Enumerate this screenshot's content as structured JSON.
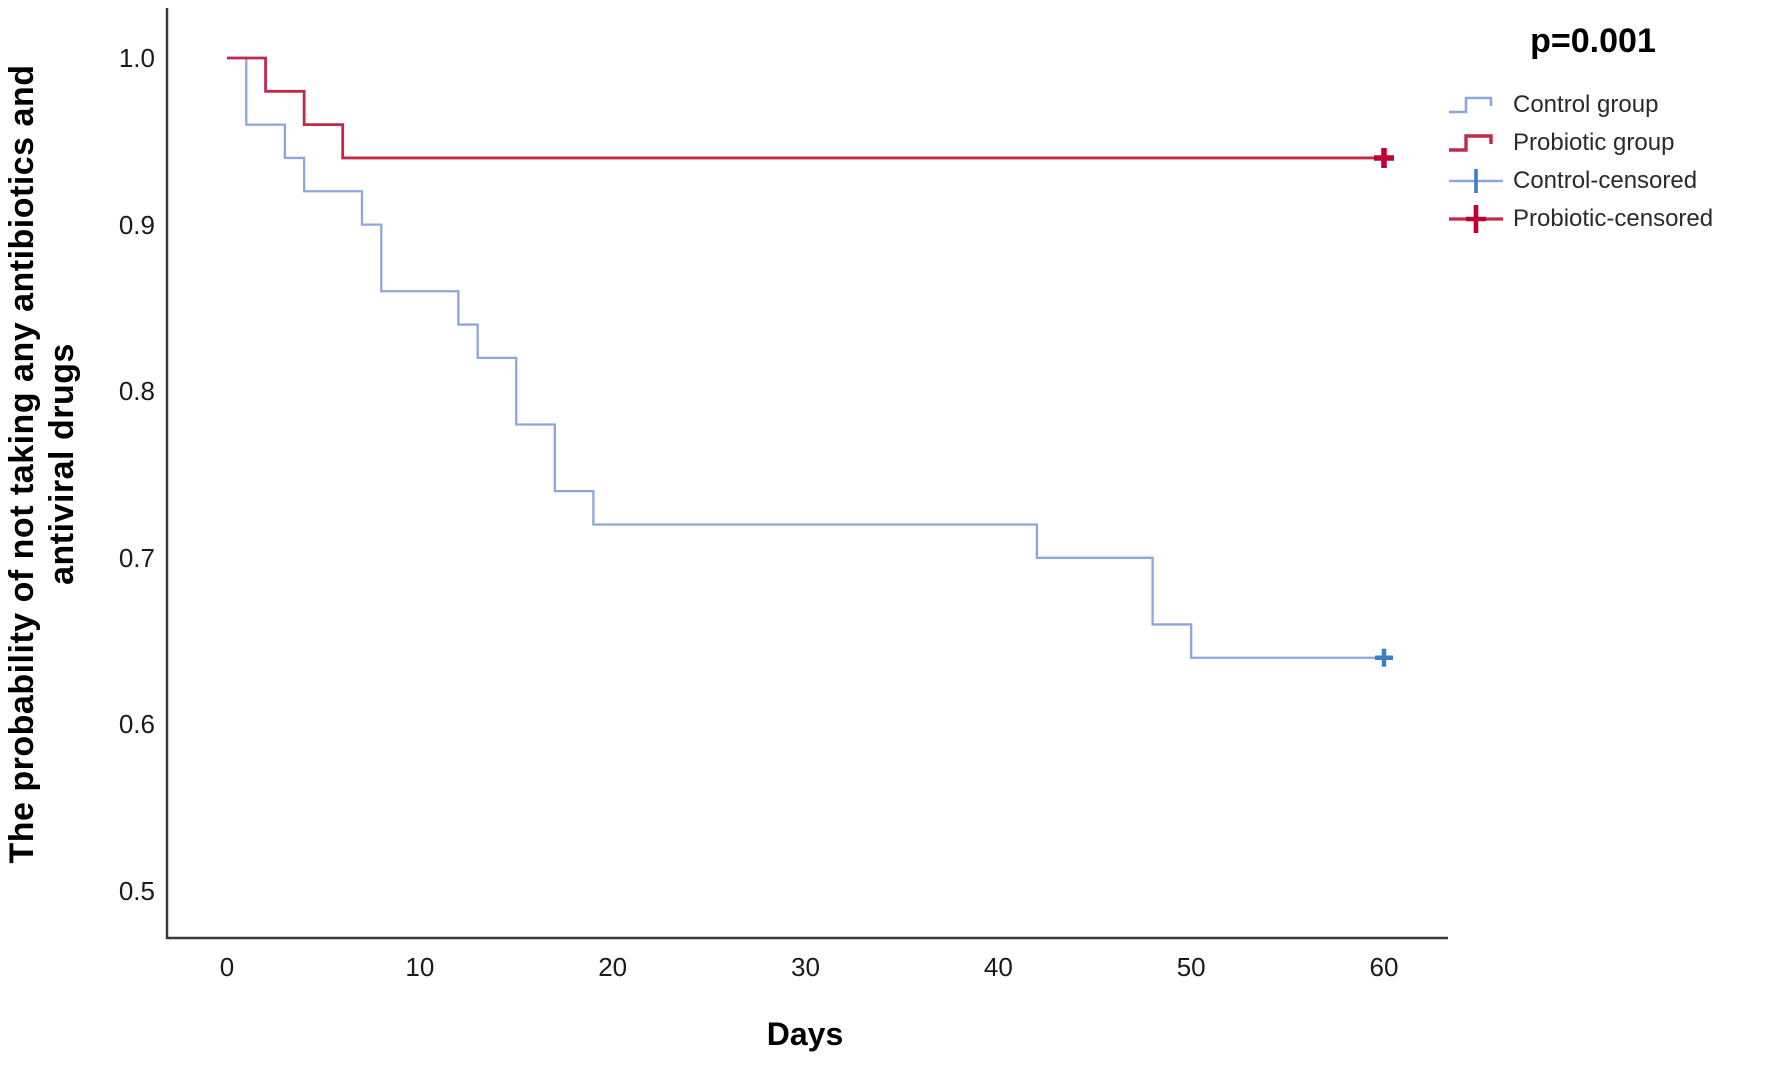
{
  "p_value_label": "p=0.001",
  "axes": {
    "y_title_line1": "The probability of not taking any antibiotics and",
    "y_title_line2": "antiviral drugs",
    "x_title": "Days"
  },
  "colors": {
    "control_line": "#8FA6DC",
    "control_censor": "#3E7CC6",
    "probiotic_line": "#C2284A",
    "probiotic_censor": "#BE0032",
    "axis_line": "#3a3a3a",
    "text": "#1a1a1a"
  },
  "chart_data": {
    "type": "line",
    "subtype": "kaplan-meier-step",
    "title": "",
    "xlabel": "Days",
    "ylabel": "The probability of not taking any antibiotics and antiviral drugs",
    "annotation": "p=0.001",
    "grid": false,
    "legend_position": "upper right",
    "xlim": [
      -3.1,
      63.3
    ],
    "ylim": [
      0.472,
      1.03
    ],
    "xticks": [
      "0",
      "10",
      "20",
      "30",
      "40",
      "50",
      "60"
    ],
    "ytick_values": [
      1.0,
      0.9,
      0.8,
      0.7,
      0.6,
      0.5
    ],
    "ytick_labels": [
      "1.0",
      "0.9",
      "0.8",
      "0.7",
      "0.6",
      "0.5"
    ],
    "series": [
      {
        "name": "Control group",
        "color": "#8FA6DC",
        "step_points": [
          [
            0,
            1.0
          ],
          [
            1,
            0.96
          ],
          [
            3,
            0.94
          ],
          [
            4,
            0.92
          ],
          [
            7,
            0.9
          ],
          [
            8,
            0.86
          ],
          [
            12,
            0.84
          ],
          [
            13,
            0.82
          ],
          [
            15,
            0.78
          ],
          [
            17,
            0.74
          ],
          [
            19,
            0.72
          ],
          [
            42,
            0.7
          ],
          [
            48,
            0.66
          ],
          [
            50,
            0.64
          ],
          [
            60,
            0.64
          ]
        ],
        "censored_points": [
          [
            60,
            0.64
          ]
        ],
        "censor_color": "#3E7CC6"
      },
      {
        "name": "Probiotic group",
        "color": "#C2284A",
        "step_points": [
          [
            0,
            1.0
          ],
          [
            2,
            0.98
          ],
          [
            4,
            0.96
          ],
          [
            6,
            0.94
          ],
          [
            60,
            0.94
          ]
        ],
        "censored_points": [
          [
            60,
            0.94
          ]
        ],
        "censor_color": "#BE0032"
      }
    ],
    "legend": [
      {
        "label": "Control group",
        "type": "step",
        "color": "#8FA6DC"
      },
      {
        "label": "Probiotic group",
        "type": "step",
        "color": "#C2284A"
      },
      {
        "label": "Control-censored",
        "type": "censor",
        "color": "#8FA6DC",
        "cross_color": "#3E7CC6"
      },
      {
        "label": "Probiotic-censored",
        "type": "censor",
        "color": "#C2284A",
        "cross_color": "#BE0032"
      }
    ]
  }
}
